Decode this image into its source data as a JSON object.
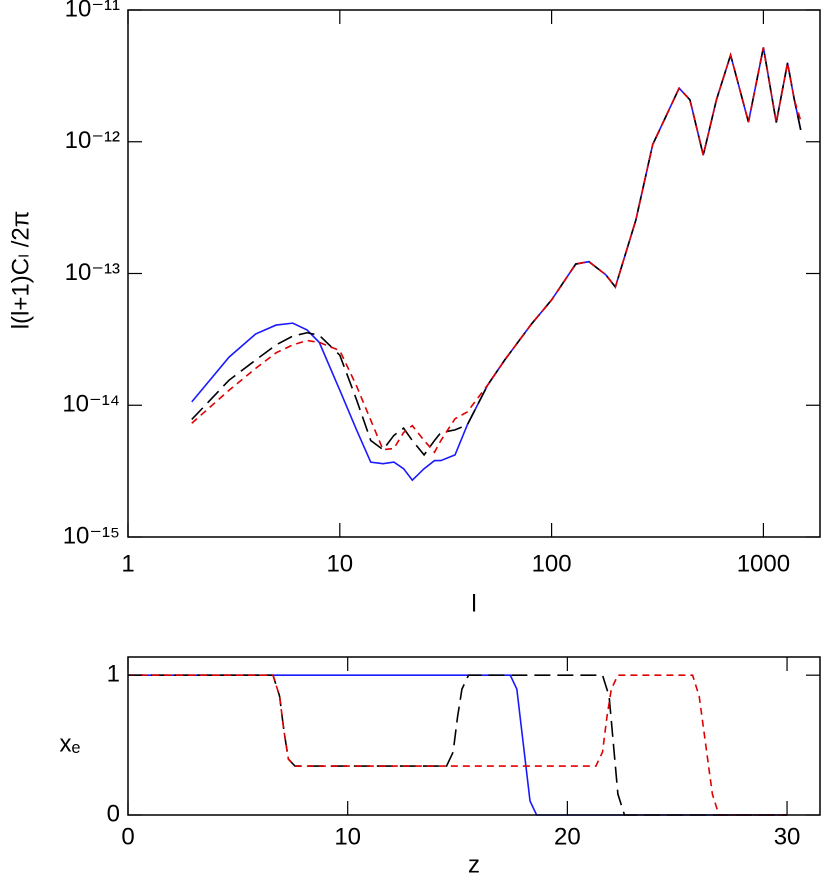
{
  "chart_data": [
    {
      "type": "line",
      "xlabel": "l",
      "ylabel": "l(l+1)Cₗ /2π",
      "xlog": true,
      "ylog": true,
      "xlim": [
        1,
        1850
      ],
      "ylim": [
        1e-15,
        1e-11
      ],
      "xticks": [
        1,
        10,
        100,
        1000
      ],
      "yticks": [
        {
          "value": 1e-15,
          "label": "10⁻¹⁵"
        },
        {
          "value": 1e-14,
          "label": "10⁻¹⁴"
        },
        {
          "value": 1e-13,
          "label": "10⁻¹³"
        },
        {
          "value": 1e-12,
          "label": "10⁻¹²"
        },
        {
          "value": 1e-11,
          "label": "10⁻¹¹"
        }
      ],
      "x": [
        2,
        3,
        4,
        5,
        6,
        7,
        8,
        10,
        12,
        14,
        16,
        18,
        20,
        22,
        25,
        28,
        30,
        35,
        40,
        50,
        60,
        80,
        100,
        130,
        150,
        180,
        200,
        250,
        300,
        400,
        450,
        520,
        600,
        700,
        850,
        1000,
        1150,
        1300,
        1400,
        1500
      ],
      "series": [
        {
          "color": "#1a1aff",
          "dash": "solid",
          "values": [
            1.06e-14,
            2.32e-14,
            3.47e-14,
            4.06e-14,
            4.2e-14,
            3.73e-14,
            3e-14,
            1.3e-14,
            6.5e-15,
            3.7e-15,
            3.6e-15,
            3.7e-15,
            3.3e-15,
            2.7e-15,
            3.3e-15,
            3.8e-15,
            3.8e-15,
            4.2e-15,
            7.1e-15,
            1.43e-14,
            2.2e-14,
            4.1e-14,
            6.3e-14,
            1.18e-13,
            1.23e-13,
            9.8e-14,
            7.9e-14,
            2.55e-13,
            9.5e-13,
            2.55e-12,
            2.08e-12,
            7.9e-13,
            2.08e-12,
            4.55e-12,
            1.41e-12,
            5.2e-12,
            1.4e-12,
            3.97e-12,
            2.08e-12,
            1.23e-12
          ]
        },
        {
          "color": "#000000",
          "dash": "long",
          "values": [
            7.8e-15,
            1.55e-14,
            2.2e-14,
            2.87e-14,
            3.35e-14,
            3.55e-14,
            3.4e-14,
            2.4e-14,
            1.1e-14,
            5.4e-15,
            4.6e-15,
            5.9e-15,
            6.7e-15,
            5.4e-15,
            4.2e-15,
            5.4e-15,
            6.2e-15,
            6.5e-15,
            7.1e-15,
            1.43e-14,
            2.2e-14,
            4.1e-14,
            6.3e-14,
            1.18e-13,
            1.23e-13,
            9.8e-14,
            7.9e-14,
            2.55e-13,
            9.5e-13,
            2.55e-12,
            2.08e-12,
            7.9e-13,
            2.08e-12,
            4.55e-12,
            1.41e-12,
            5.2e-12,
            1.4e-12,
            3.97e-12,
            2.08e-12,
            1.23e-12
          ]
        },
        {
          "color": "#e00000",
          "dash": "short",
          "values": [
            7.3e-15,
            1.3e-14,
            1.9e-14,
            2.5e-14,
            2.87e-14,
            3.1e-14,
            3e-14,
            2.6e-14,
            1.4e-14,
            7.7e-15,
            4.6e-15,
            4.7e-15,
            6.2e-15,
            7e-15,
            5.4e-15,
            4.4e-15,
            5.4e-15,
            7.9e-15,
            8.9e-15,
            1.43e-14,
            2.2e-14,
            4.1e-14,
            6.3e-14,
            1.18e-13,
            1.23e-13,
            9.8e-14,
            7.9e-14,
            2.55e-13,
            9.5e-13,
            2.55e-12,
            2.08e-12,
            7.9e-13,
            2.08e-12,
            4.55e-12,
            1.41e-12,
            5.2e-12,
            1.4e-12,
            3.97e-12,
            2.08e-12,
            1.45e-12
          ]
        }
      ]
    },
    {
      "type": "line",
      "xlabel": "z",
      "ylabel": "xₑ",
      "xlog": false,
      "ylog": false,
      "xlim": [
        0,
        31.5
      ],
      "ylim": [
        0,
        1.13
      ],
      "xticks": [
        0,
        10,
        20,
        30
      ],
      "yticks": [
        0,
        1
      ],
      "series": [
        {
          "color": "#1a1aff",
          "dash": "solid",
          "x": [
            0,
            17.4,
            17.7,
            18.0,
            18.3,
            18.6,
            30
          ],
          "values": [
            1,
            1,
            0.9,
            0.5,
            0.1,
            0,
            0
          ]
        },
        {
          "color": "#000000",
          "dash": "long",
          "x": [
            0,
            6.6,
            6.9,
            7.1,
            7.3,
            7.6,
            14.5,
            14.8,
            15.0,
            15.2,
            15.5,
            21.6,
            21.9,
            22.1,
            22.3,
            22.6,
            30
          ],
          "values": [
            1,
            1,
            0.85,
            0.6,
            0.4,
            0.35,
            0.35,
            0.45,
            0.7,
            0.9,
            1,
            1,
            0.85,
            0.5,
            0.15,
            0,
            0
          ]
        },
        {
          "color": "#e00000",
          "dash": "short",
          "x": [
            0,
            6.6,
            6.9,
            7.1,
            7.3,
            7.6,
            21.3,
            21.6,
            21.8,
            22.0,
            22.3,
            25.7,
            26.0,
            26.3,
            26.6,
            26.9,
            30
          ],
          "values": [
            1,
            1,
            0.85,
            0.6,
            0.4,
            0.35,
            0.35,
            0.45,
            0.7,
            0.9,
            1,
            1,
            0.85,
            0.5,
            0.15,
            0,
            0
          ]
        }
      ]
    }
  ]
}
